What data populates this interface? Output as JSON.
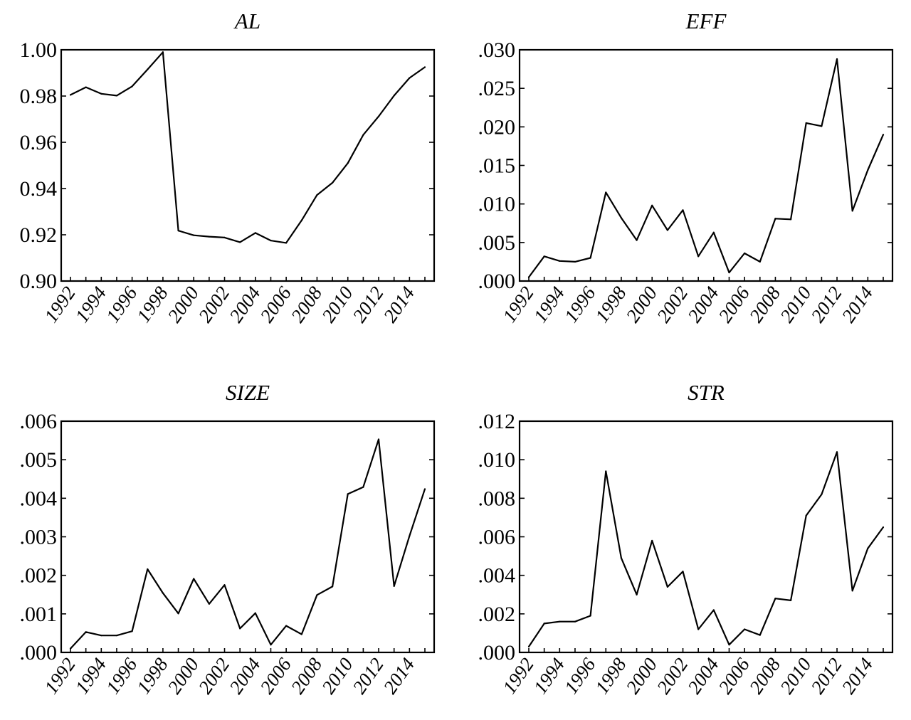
{
  "chart_data": [
    {
      "type": "line",
      "title": "AL",
      "xlabel": "",
      "ylabel": "",
      "x": [
        1992,
        1993,
        1994,
        1995,
        1996,
        1997,
        1998,
        1999,
        2000,
        2001,
        2002,
        2003,
        2004,
        2005,
        2006,
        2007,
        2008,
        2009,
        2010,
        2011,
        2012,
        2013,
        2014,
        2015
      ],
      "values": [
        0.9805,
        0.9838,
        0.981,
        0.9802,
        0.9842,
        0.9915,
        0.999,
        0.9218,
        0.9198,
        0.9192,
        0.9188,
        0.9168,
        0.9208,
        0.9175,
        0.9165,
        0.9262,
        0.9372,
        0.9425,
        0.951,
        0.9632,
        0.9712,
        0.9802,
        0.9878,
        0.9925
      ],
      "ylim": [
        0.9,
        1.0
      ],
      "yticks": [
        "0.90",
        "0.92",
        "0.94",
        "0.96",
        "0.98",
        "1.00"
      ],
      "xticks": [
        "1992",
        "1994",
        "1996",
        "1998",
        "2000",
        "2002",
        "2004",
        "2006",
        "2008",
        "2010",
        "2012",
        "2014"
      ],
      "grid": false
    },
    {
      "type": "line",
      "title": "EFF",
      "xlabel": "",
      "ylabel": "",
      "x": [
        1992,
        1993,
        1994,
        1995,
        1996,
        1997,
        1998,
        1999,
        2000,
        2001,
        2002,
        2003,
        2004,
        2005,
        2006,
        2007,
        2008,
        2009,
        2010,
        2011,
        2012,
        2013,
        2014,
        2015
      ],
      "values": [
        0.0005,
        0.0032,
        0.0026,
        0.0025,
        0.003,
        0.0115,
        0.0082,
        0.0053,
        0.0098,
        0.0066,
        0.0092,
        0.0032,
        0.0063,
        0.0011,
        0.0036,
        0.0025,
        0.0081,
        0.008,
        0.0205,
        0.0201,
        0.0288,
        0.0091,
        0.0144,
        0.019
      ],
      "ylim": [
        0.0,
        0.03
      ],
      "yticks": [
        ".000",
        ".005",
        ".010",
        ".015",
        ".020",
        ".025",
        ".030"
      ],
      "xticks": [
        "1992",
        "1994",
        "1996",
        "1998",
        "2000",
        "2002",
        "2004",
        "2006",
        "2008",
        "2010",
        "2012",
        "2014"
      ],
      "grid": false
    },
    {
      "type": "line",
      "title": "SIZE",
      "xlabel": "",
      "ylabel": "",
      "x": [
        1992,
        1993,
        1994,
        1995,
        1996,
        1997,
        1998,
        1999,
        2000,
        2001,
        2002,
        2003,
        2004,
        2005,
        2006,
        2007,
        2008,
        2009,
        2010,
        2011,
        2012,
        2013,
        2014,
        2015
      ],
      "values": [
        0.0001,
        0.00053,
        0.00044,
        0.00044,
        0.00055,
        0.00216,
        0.00154,
        0.00101,
        0.00191,
        0.00126,
        0.00175,
        0.00062,
        0.00102,
        0.0002,
        0.00069,
        0.00047,
        0.00149,
        0.00171,
        0.00411,
        0.00429,
        0.00553,
        0.00172,
        0.00302,
        0.00424
      ],
      "ylim": [
        0.0,
        0.006
      ],
      "yticks": [
        ".000",
        ".001",
        ".002",
        ".003",
        ".004",
        ".005",
        ".006"
      ],
      "xticks": [
        "1992",
        "1994",
        "1996",
        "1998",
        "2000",
        "2002",
        "2004",
        "2006",
        "2008",
        "2010",
        "2012",
        "2014"
      ],
      "grid": false
    },
    {
      "type": "line",
      "title": "STR",
      "xlabel": "",
      "ylabel": "",
      "x": [
        1992,
        1993,
        1994,
        1995,
        1996,
        1997,
        1998,
        1999,
        2000,
        2001,
        2002,
        2003,
        2004,
        2005,
        2006,
        2007,
        2008,
        2009,
        2010,
        2011,
        2012,
        2013,
        2014,
        2015
      ],
      "values": [
        0.0003,
        0.0015,
        0.0016,
        0.0016,
        0.0019,
        0.0094,
        0.0049,
        0.003,
        0.0058,
        0.0034,
        0.0042,
        0.0012,
        0.0022,
        0.0004,
        0.0012,
        0.0009,
        0.0028,
        0.0027,
        0.0071,
        0.0082,
        0.0104,
        0.0032,
        0.0054,
        0.0065
      ],
      "ylim": [
        0.0,
        0.012
      ],
      "yticks": [
        ".000",
        ".002",
        ".004",
        ".006",
        ".008",
        ".010",
        ".012"
      ],
      "xticks": [
        "1992",
        "1994",
        "1996",
        "1998",
        "2000",
        "2002",
        "2004",
        "2006",
        "2008",
        "2010",
        "2012",
        "2014"
      ],
      "grid": false
    }
  ]
}
